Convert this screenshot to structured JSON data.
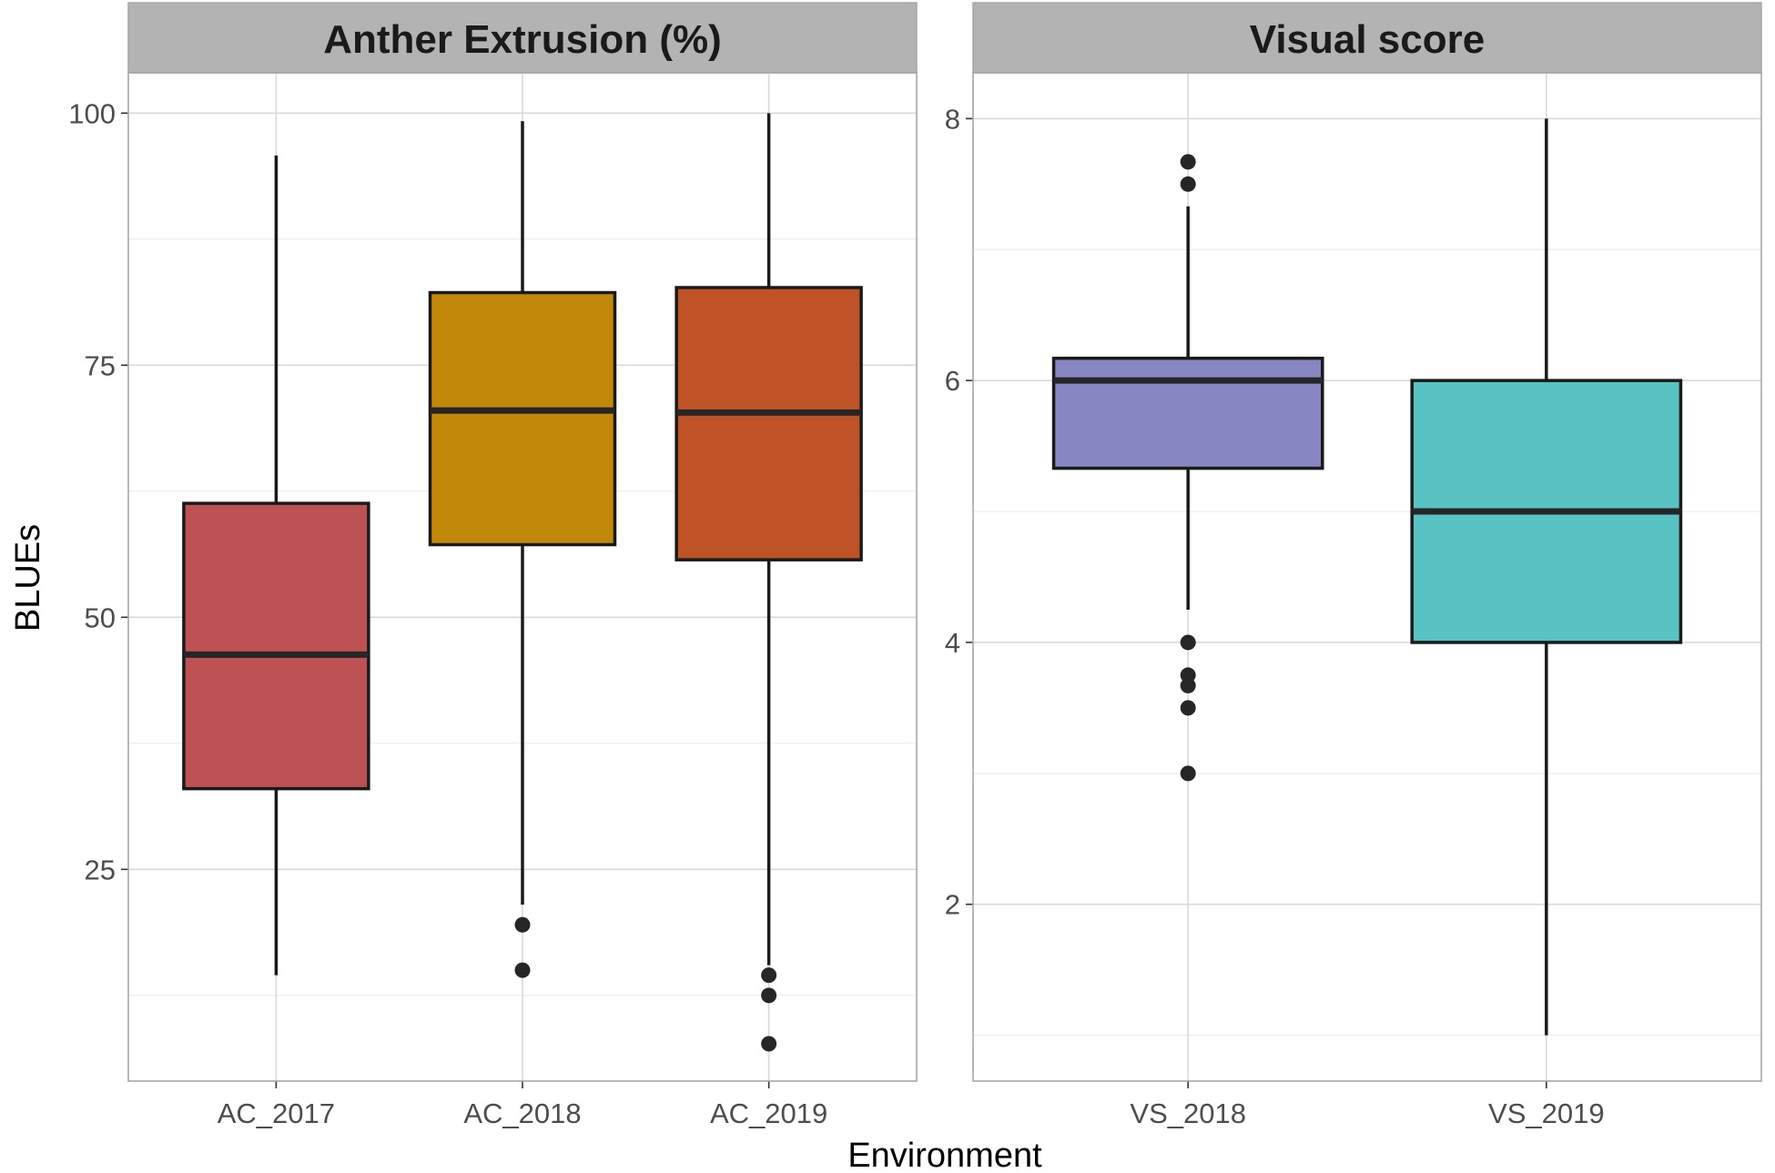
{
  "chart_data": {
    "type": "boxplot",
    "xlabel": "Environment",
    "ylabel": "BLUEs",
    "panels": [
      {
        "title": "Anther Extrusion (%)",
        "ylim": [
          4,
          104
        ],
        "yticks": [
          25,
          50,
          75,
          100
        ],
        "boxes": [
          {
            "label": "AC_2017",
            "color": "#BD5153",
            "min": 14.5,
            "q1": 33,
            "median": 46.3,
            "q3": 61.3,
            "max": 95.8,
            "outliers": []
          },
          {
            "label": "AC_2018",
            "color": "#C1880A",
            "min": 21.5,
            "q1": 57.2,
            "median": 70.5,
            "q3": 82.2,
            "max": 99.2,
            "outliers": [
              19.5,
              15.0
            ]
          },
          {
            "label": "AC_2019",
            "color": "#C05228",
            "min": 15.5,
            "q1": 55.7,
            "median": 70.3,
            "q3": 82.7,
            "max": 100,
            "outliers": [
              14.5,
              12.5,
              7.7
            ]
          }
        ]
      },
      {
        "title": "Visual score",
        "ylim": [
          0.65,
          8.35
        ],
        "yticks": [
          2,
          4,
          6,
          8
        ],
        "boxes": [
          {
            "label": "VS_2018",
            "color": "#8786C2",
            "min": 4.25,
            "q1": 5.33,
            "median": 6.0,
            "q3": 6.17,
            "max": 7.33,
            "outliers": [
              7.67,
              7.5,
              4.0,
              3.75,
              3.67,
              3.5,
              3.0
            ]
          },
          {
            "label": "VS_2019",
            "color": "#58C3C2",
            "min": 1.0,
            "q1": 4.0,
            "median": 5.0,
            "q3": 6.0,
            "max": 8.0,
            "outliers": []
          }
        ]
      }
    ]
  }
}
